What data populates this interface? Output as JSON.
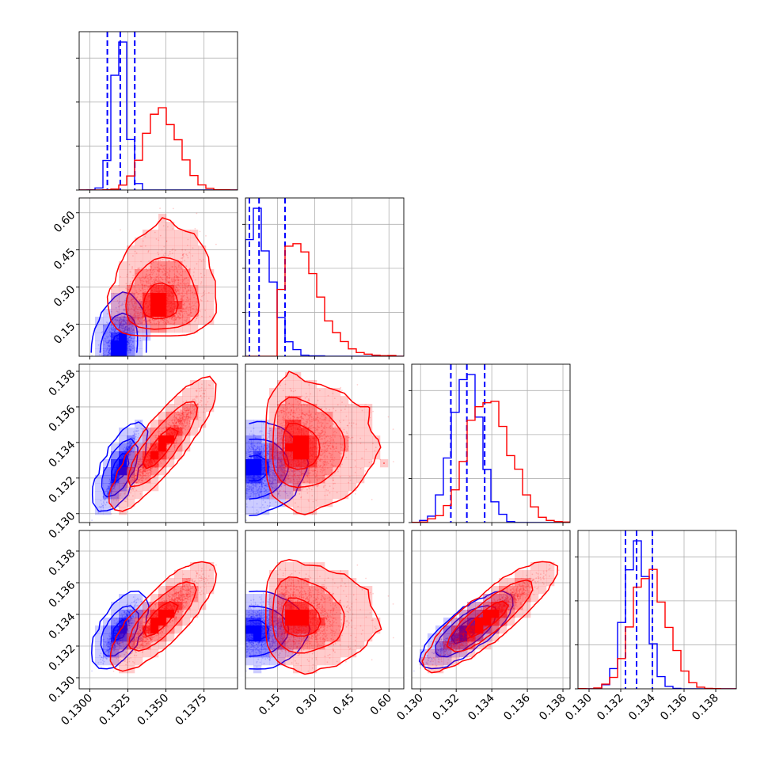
{
  "chart_data": {
    "type": "corner",
    "parameters": [
      {
        "id": "p0",
        "range": [
          0.1293,
          0.1397
        ],
        "ticks": [
          {
            "value": 0.13,
            "label": "0.1300"
          },
          {
            "value": 0.1325,
            "label": "0.1325"
          },
          {
            "value": 0.135,
            "label": "0.1350"
          },
          {
            "value": 0.1375,
            "label": "0.1375"
          }
        ]
      },
      {
        "id": "p1",
        "range": [
          0.02,
          0.66
        ],
        "ticks": [
          {
            "value": 0.15,
            "label": "0.15"
          },
          {
            "value": 0.3,
            "label": "0.30"
          },
          {
            "value": 0.45,
            "label": "0.45"
          },
          {
            "value": 0.6,
            "label": "0.60"
          }
        ]
      },
      {
        "id": "p2",
        "range": [
          0.1295,
          0.1384
        ],
        "ticks": [
          {
            "value": 0.13,
            "label": "0.130"
          },
          {
            "value": 0.132,
            "label": "0.132"
          },
          {
            "value": 0.134,
            "label": "0.134"
          },
          {
            "value": 0.136,
            "label": "0.136"
          },
          {
            "value": 0.138,
            "label": "0.138"
          }
        ]
      },
      {
        "id": "p3",
        "range": [
          0.1293,
          0.1393
        ],
        "ticks": [
          {
            "value": 0.13,
            "label": "0.130"
          },
          {
            "value": 0.132,
            "label": "0.132"
          },
          {
            "value": 0.134,
            "label": "0.134"
          },
          {
            "value": 0.136,
            "label": "0.136"
          },
          {
            "value": 0.138,
            "label": "0.138"
          }
        ]
      }
    ],
    "grid": true,
    "series": [
      {
        "color": "#0000ff",
        "mean": [
          0.132,
          0.09,
          0.1326,
          0.133
        ],
        "sd": [
          0.00045,
          0.045,
          0.0008,
          0.0007
        ],
        "corr": [
          [
            1.0,
            0.3,
            0.95,
            0.85
          ],
          [
            0.3,
            1.0,
            0.1,
            0.05
          ],
          [
            0.95,
            0.1,
            1.0,
            0.95
          ],
          [
            0.85,
            0.05,
            0.95,
            1.0
          ]
        ],
        "quantiles": [
          [
            0.13115,
            0.132,
            0.13295
          ],
          [
            0.036,
            0.075,
            0.18
          ],
          [
            0.1317,
            0.1326,
            0.1336
          ],
          [
            0.1323,
            0.133,
            0.134
          ]
        ]
      },
      {
        "color": "#ff0000",
        "mean": [
          0.1347,
          0.26,
          0.1338,
          0.1338
        ],
        "sd": [
          0.0011,
          0.07,
          0.0012,
          0.0011
        ],
        "corr": [
          [
            1.0,
            0.1,
            0.95,
            0.9
          ],
          [
            0.1,
            1.0,
            -0.05,
            -0.1
          ],
          [
            0.95,
            -0.05,
            1.0,
            0.95
          ],
          [
            0.9,
            -0.1,
            0.95,
            1.0
          ]
        ]
      }
    ],
    "hist_ylim_factor": 1.07,
    "contour_levels": [
      0.39,
      0.86,
      0.99
    ]
  },
  "colors": {
    "blue": "#0000ff",
    "red": "#ff0000",
    "grid": "#b0b0b0",
    "axes": "#000000"
  }
}
